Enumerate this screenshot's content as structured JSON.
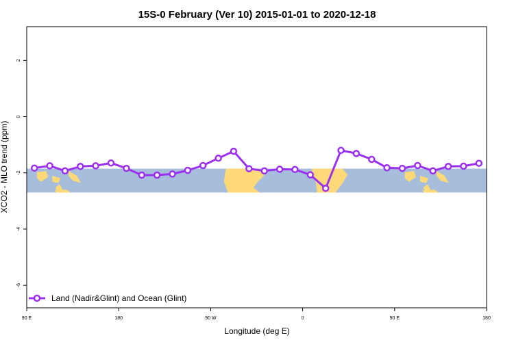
{
  "chart_data": {
    "type": "line",
    "title": "15S-0 February (Ver 10)   2015-01-01 to 2020-12-18",
    "xlabel": "Longitude (deg E)",
    "ylabel": "XCO2 - MLO trend (ppm)",
    "xlim": [
      90,
      540
    ],
    "ylim": [
      -6.8,
      3.2
    ],
    "x_ticks": [
      {
        "value": 90,
        "label": "90 E"
      },
      {
        "value": 180,
        "label": "180"
      },
      {
        "value": 270,
        "label": "90 W"
      },
      {
        "value": 360,
        "label": "0"
      },
      {
        "value": 450,
        "label": "90 E"
      },
      {
        "value": 540,
        "label": "180"
      }
    ],
    "y_ticks": [
      {
        "value": 2,
        "label": "2"
      },
      {
        "value": 0,
        "label": "0"
      },
      {
        "value": -2,
        "label": "-2"
      },
      {
        "value": -4,
        "label": "-4"
      },
      {
        "value": -6,
        "label": "-6"
      }
    ],
    "map_band": {
      "lat_range": [
        -15,
        0
      ],
      "y_range": [
        -2.7,
        -1.85
      ],
      "ocean_color": "#a7bddc",
      "land_color": "#fdd978"
    },
    "series": [
      {
        "name": "Land (Nadir&Glint) and Ocean (Glint)",
        "color": "#9b30f0",
        "x": [
          97.5,
          112.5,
          127.5,
          142.5,
          157.5,
          172.5,
          187.5,
          202.5,
          217.5,
          232.5,
          247.5,
          262.5,
          277.5,
          292.5,
          307.5,
          322.5,
          337.5,
          352.5,
          367.5,
          382.5,
          397.5,
          412.5,
          427.5,
          442.5,
          457.5,
          472.5,
          487.5,
          502.5,
          517.5,
          532.5
        ],
        "y": [
          -1.83,
          -1.75,
          -1.93,
          -1.77,
          -1.75,
          -1.65,
          -1.84,
          -2.08,
          -2.08,
          -2.04,
          -1.91,
          -1.74,
          -1.48,
          -1.23,
          -1.85,
          -1.93,
          -1.87,
          -1.88,
          -2.07,
          -2.55,
          -1.2,
          -1.31,
          -1.52,
          -1.82,
          -1.84,
          -1.74,
          -1.93,
          -1.77,
          -1.76,
          -1.66
        ]
      }
    ],
    "legend_position": "bottom-left",
    "grid": false
  }
}
